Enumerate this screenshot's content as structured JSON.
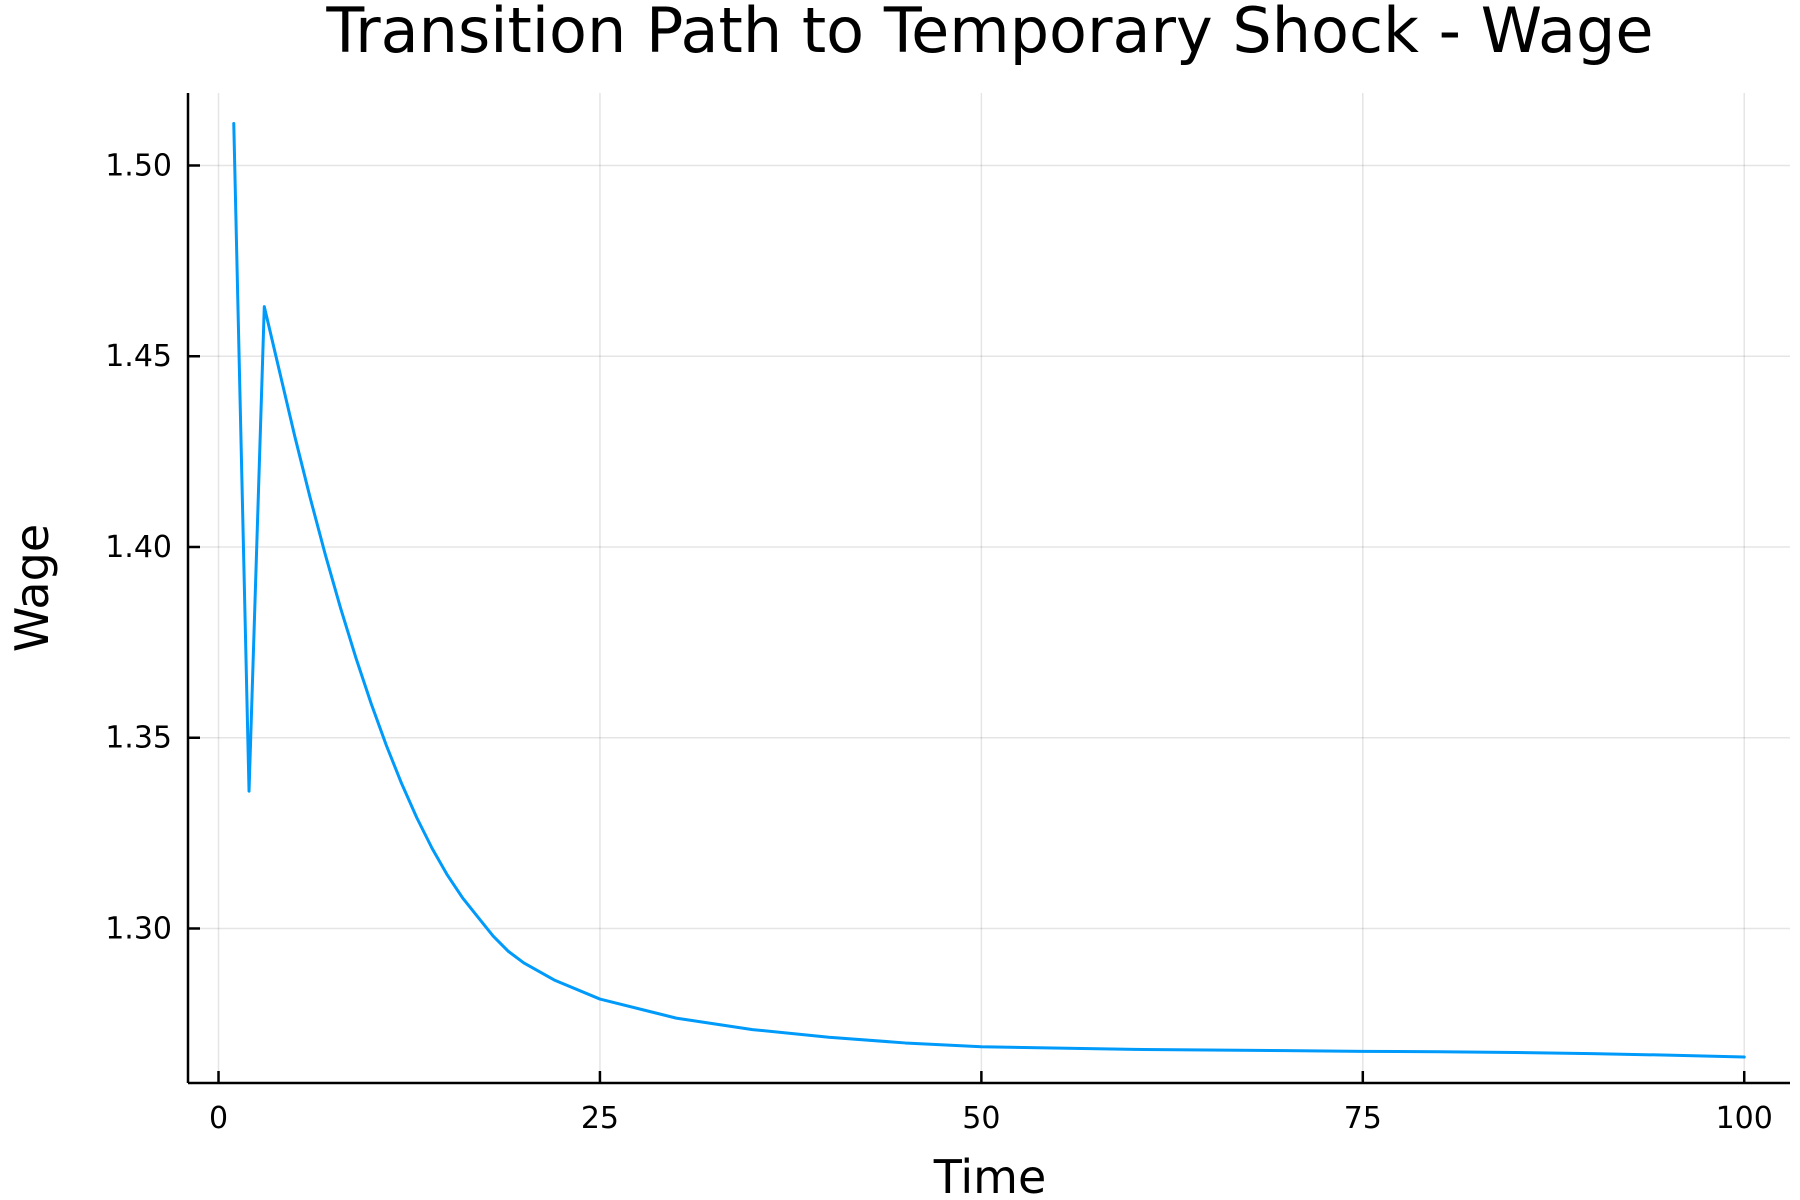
{
  "chart_data": {
    "type": "line",
    "title": "Transition Path to Temporary Shock - Wage",
    "xlabel": "Time",
    "ylabel": "Wage",
    "xlim": [
      -2,
      103
    ],
    "ylim": [
      1.2595,
      1.519
    ],
    "xticks": [
      0,
      25,
      50,
      75,
      100
    ],
    "xtick_labels": [
      "0",
      "25",
      "50",
      "75",
      "100"
    ],
    "yticks": [
      1.3,
      1.35,
      1.4,
      1.45,
      1.5
    ],
    "ytick_labels": [
      "1.30",
      "1.35",
      "1.40",
      "1.45",
      "1.50"
    ],
    "grid": true,
    "legend": "none",
    "colors": {
      "series": "#009AFA"
    },
    "series": [
      {
        "x": [
          1,
          2,
          3,
          4,
          5,
          6,
          7,
          8,
          9,
          10,
          11,
          12,
          13,
          14,
          15,
          16,
          17,
          18,
          19,
          20,
          22,
          25,
          28,
          30,
          35,
          40,
          45,
          50,
          60,
          70,
          75,
          80,
          85,
          90,
          95,
          100
        ],
        "values": [
          1.511,
          1.336,
          1.463,
          1.446,
          1.429,
          1.413,
          1.398,
          1.384,
          1.371,
          1.359,
          1.348,
          1.338,
          1.329,
          1.321,
          1.314,
          1.308,
          1.303,
          1.298,
          1.294,
          1.291,
          1.2865,
          1.2815,
          1.2785,
          1.2765,
          1.2735,
          1.2715,
          1.27,
          1.269,
          1.2683,
          1.268,
          1.2678,
          1.2677,
          1.2675,
          1.2672,
          1.2668,
          1.2663
        ]
      }
    ]
  }
}
